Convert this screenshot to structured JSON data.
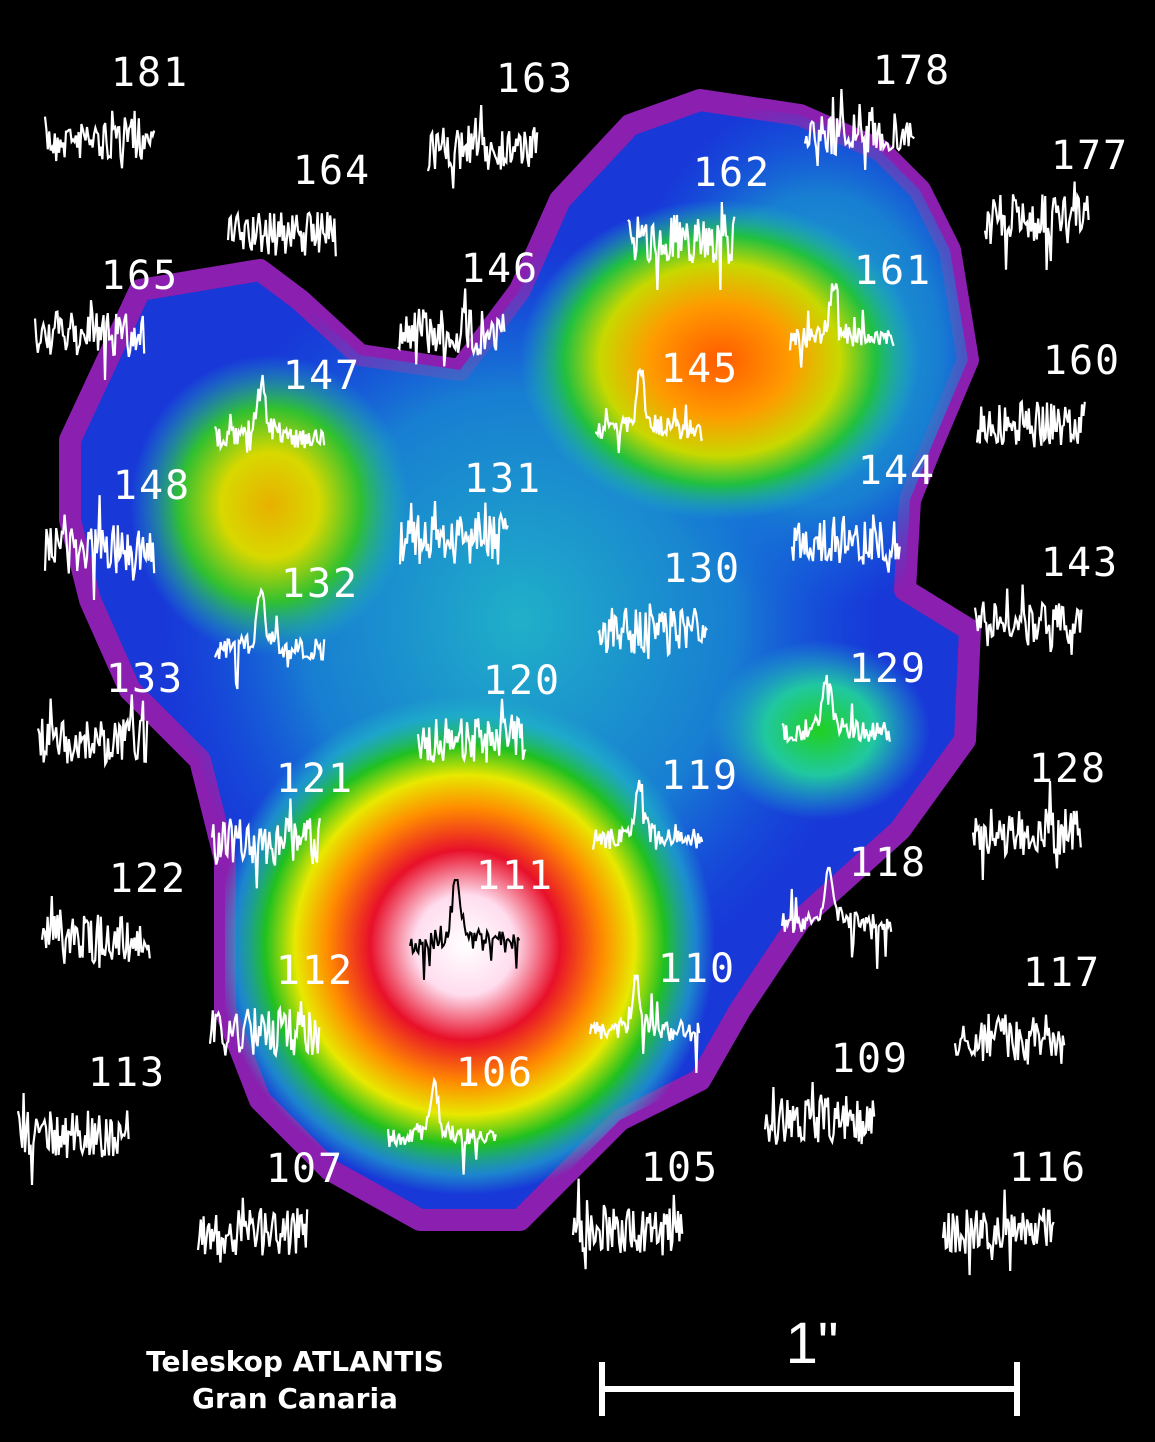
{
  "fibers": [
    {
      "label": "181"
    },
    {
      "label": "163"
    },
    {
      "label": "178"
    },
    {
      "label": "164"
    },
    {
      "label": "177"
    },
    {
      "label": "165"
    },
    {
      "label": "146"
    },
    {
      "label": "162"
    },
    {
      "label": "161"
    },
    {
      "label": "147"
    },
    {
      "label": "160"
    },
    {
      "label": "145"
    },
    {
      "label": "148"
    },
    {
      "label": "131"
    },
    {
      "label": "144"
    },
    {
      "label": "143"
    },
    {
      "label": "130"
    },
    {
      "label": "132"
    },
    {
      "label": "133"
    },
    {
      "label": "120"
    },
    {
      "label": "129"
    },
    {
      "label": "128"
    },
    {
      "label": "119"
    },
    {
      "label": "121"
    },
    {
      "label": "118"
    },
    {
      "label": "122"
    },
    {
      "label": "111"
    },
    {
      "label": "112"
    },
    {
      "label": "110"
    },
    {
      "label": "117"
    },
    {
      "label": "109"
    },
    {
      "label": "113"
    },
    {
      "label": "106"
    },
    {
      "label": "107"
    },
    {
      "label": "105"
    },
    {
      "label": "116"
    }
  ],
  "caption": [
    "Teleskop ATLANTIS",
    "Gran Canaria"
  ],
  "scale_bar": {
    "label": "1\""
  }
}
